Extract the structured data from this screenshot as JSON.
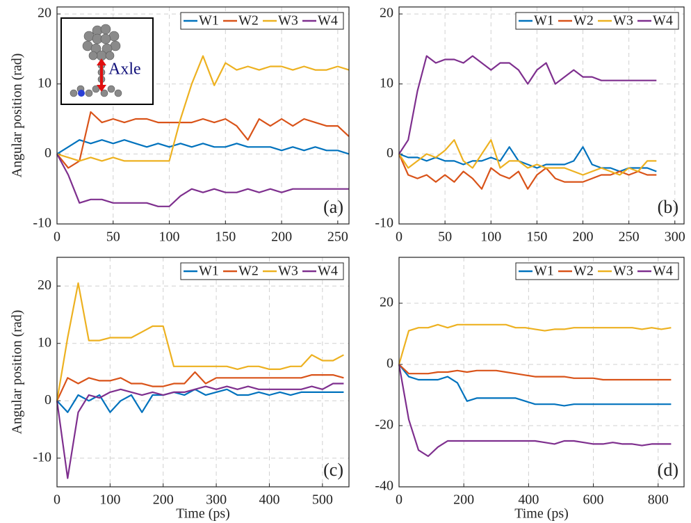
{
  "chart_data": [
    {
      "type": "line",
      "panel_label": "(a)",
      "ylabel": "Angular position (rad)",
      "inset_label": "Axle",
      "x": [
        0,
        10,
        20,
        30,
        40,
        50,
        60,
        70,
        80,
        90,
        100,
        110,
        120,
        130,
        140,
        150,
        160,
        170,
        180,
        190,
        200,
        210,
        220,
        230,
        240,
        250,
        260
      ],
      "xlim": [
        0,
        260
      ],
      "xticks": [
        0,
        50,
        100,
        150,
        200,
        250
      ],
      "ylim": [
        -10,
        21
      ],
      "yticks": [
        -10,
        0,
        10,
        20
      ],
      "grid": true,
      "legend": "upper right",
      "series": [
        {
          "name": "W1",
          "color": "#0072BD",
          "values": [
            0,
            1,
            2,
            1.5,
            2,
            1.5,
            2,
            1.5,
            1,
            1.5,
            1,
            1.5,
            1,
            1.5,
            1,
            1,
            1.5,
            1,
            1,
            1,
            0.5,
            1,
            0.5,
            1,
            0.5,
            0.5,
            0
          ]
        },
        {
          "name": "W2",
          "color": "#D95319",
          "values": [
            0,
            -2,
            -1,
            6,
            4.5,
            5,
            4.5,
            5,
            5,
            4.5,
            4.5,
            4.5,
            4.5,
            5,
            4.5,
            5,
            4,
            2,
            5,
            4,
            5,
            4,
            5,
            4.5,
            4,
            4,
            2.5
          ]
        },
        {
          "name": "W3",
          "color": "#EDB120",
          "values": [
            0,
            -0.5,
            -1,
            -0.5,
            -1,
            -0.5,
            -1,
            -1,
            -1,
            -1,
            -1,
            5,
            10,
            14,
            9.8,
            13,
            12,
            12.5,
            12,
            12.5,
            12.5,
            12,
            12.5,
            12,
            12,
            12.5,
            12
          ]
        },
        {
          "name": "W4",
          "color": "#7E2F8E",
          "values": [
            0,
            -3,
            -7,
            -6.5,
            -6.5,
            -7,
            -7,
            -7,
            -7,
            -7.5,
            -7.5,
            -6,
            -5,
            -5.5,
            -5,
            -5.5,
            -5.5,
            -5,
            -5.5,
            -5,
            -5.5,
            -5,
            -5,
            -5,
            -5,
            -5,
            -5
          ]
        }
      ]
    },
    {
      "type": "line",
      "panel_label": "(b)",
      "x": [
        0,
        10,
        20,
        30,
        40,
        50,
        60,
        70,
        80,
        90,
        100,
        110,
        120,
        130,
        140,
        150,
        160,
        170,
        180,
        190,
        200,
        210,
        220,
        230,
        240,
        250,
        260,
        270,
        280
      ],
      "xlim": [
        0,
        310
      ],
      "xticks": [
        0,
        50,
        100,
        150,
        200,
        250,
        300
      ],
      "ylim": [
        -10,
        21
      ],
      "yticks": [
        -10,
        0,
        10,
        20
      ],
      "grid": true,
      "legend": "upper right",
      "series": [
        {
          "name": "W1",
          "color": "#0072BD",
          "values": [
            0,
            -0.5,
            -0.5,
            -1,
            -0.5,
            -1,
            -1,
            -1.5,
            -1,
            -1,
            -0.5,
            -1,
            1,
            -1,
            -1.5,
            -2,
            -1.5,
            -1.5,
            -1.5,
            -1,
            1,
            -1.5,
            -2,
            -2,
            -2.5,
            -2,
            -2,
            -2,
            -2.5
          ]
        },
        {
          "name": "W2",
          "color": "#D95319",
          "values": [
            0,
            -3,
            -3.5,
            -3,
            -4,
            -3,
            -4,
            -2.5,
            -3.5,
            -5,
            -2,
            -3,
            -3.5,
            -2.5,
            -5,
            -3,
            -2,
            -3.5,
            -4,
            -4,
            -4,
            -3.5,
            -3,
            -3,
            -2.5,
            -3,
            -2.5,
            -3,
            -3
          ]
        },
        {
          "name": "W3",
          "color": "#EDB120",
          "values": [
            0,
            -2,
            -1,
            0,
            -0.5,
            0.5,
            2,
            -1,
            -2,
            0,
            2,
            -2,
            -1,
            -1,
            -2,
            -1.5,
            -2,
            -2,
            -2,
            -2.5,
            -3,
            -2.5,
            -2,
            -2.5,
            -3,
            -2,
            -2.5,
            -1,
            -1
          ]
        },
        {
          "name": "W4",
          "color": "#7E2F8E",
          "values": [
            0,
            2,
            9,
            14,
            13,
            13.5,
            13.5,
            13,
            14,
            13,
            12,
            13,
            13,
            12,
            10,
            12,
            13,
            10,
            11,
            12,
            11,
            11,
            10.5,
            10.5,
            10.5,
            10.5,
            10.5,
            10.5,
            10.5
          ]
        }
      ]
    },
    {
      "type": "line",
      "panel_label": "(c)",
      "ylabel": "Angular position (rad)",
      "xlabel": "Time (ps)",
      "x": [
        0,
        20,
        40,
        60,
        80,
        100,
        120,
        140,
        160,
        180,
        200,
        220,
        240,
        260,
        280,
        300,
        320,
        340,
        360,
        380,
        400,
        420,
        440,
        460,
        480,
        500,
        520,
        540
      ],
      "xlim": [
        0,
        550
      ],
      "xticks": [
        0,
        100,
        200,
        300,
        400,
        500
      ],
      "ylim": [
        -15,
        25
      ],
      "yticks": [
        -10,
        0,
        10,
        20
      ],
      "grid": true,
      "legend": "upper right",
      "series": [
        {
          "name": "W1",
          "color": "#0072BD",
          "values": [
            0,
            -2,
            1,
            0,
            1,
            -2,
            0,
            1,
            -2,
            1,
            1,
            1.5,
            1,
            2,
            1,
            1.5,
            2,
            1,
            1,
            1.5,
            1,
            1.5,
            1,
            1.5,
            1.5,
            1.5,
            1.5,
            1.5
          ]
        },
        {
          "name": "W2",
          "color": "#D95319",
          "values": [
            0,
            4,
            3,
            4,
            3.5,
            3.5,
            4,
            3,
            3,
            2.5,
            2.5,
            3,
            3,
            5,
            3,
            4,
            4,
            4,
            4,
            4,
            4,
            4,
            4,
            4,
            4.5,
            4.5,
            4.5,
            4
          ]
        },
        {
          "name": "W3",
          "color": "#EDB120",
          "values": [
            0,
            11,
            20.5,
            10.5,
            10.5,
            11,
            11,
            11,
            12,
            13,
            13,
            6,
            6,
            6,
            6,
            6,
            6,
            5.5,
            6,
            6,
            5.5,
            5.5,
            6,
            6,
            8,
            7,
            7,
            8
          ]
        },
        {
          "name": "W4",
          "color": "#7E2F8E",
          "values": [
            0,
            -13.5,
            -2,
            1,
            0.5,
            1.5,
            2,
            1.5,
            1,
            1.5,
            1,
            1.5,
            1.5,
            2,
            2.5,
            2,
            2.5,
            2,
            2.5,
            2,
            2,
            2,
            2,
            2,
            2.5,
            2,
            3,
            3
          ]
        }
      ]
    },
    {
      "type": "line",
      "panel_label": "(d)",
      "xlabel": "Time (ps)",
      "x": [
        0,
        30,
        60,
        90,
        120,
        150,
        180,
        210,
        240,
        270,
        300,
        330,
        360,
        390,
        420,
        450,
        480,
        510,
        540,
        570,
        600,
        630,
        660,
        690,
        720,
        750,
        780,
        810,
        840
      ],
      "xlim": [
        0,
        880
      ],
      "xticks": [
        0,
        200,
        400,
        600,
        800
      ],
      "ylim": [
        -40,
        35
      ],
      "yticks": [
        -40,
        -20,
        0,
        20
      ],
      "grid": true,
      "legend": "upper right",
      "series": [
        {
          "name": "W1",
          "color": "#0072BD",
          "values": [
            0,
            -4,
            -5,
            -5,
            -5,
            -4,
            -6,
            -12,
            -11,
            -11,
            -11,
            -11,
            -11,
            -12,
            -13,
            -13,
            -13,
            -13.5,
            -13,
            -13,
            -13,
            -13,
            -13,
            -13,
            -13,
            -13,
            -13,
            -13,
            -13
          ]
        },
        {
          "name": "W2",
          "color": "#D95319",
          "values": [
            0,
            -3,
            -3,
            -3,
            -2.5,
            -2.5,
            -2,
            -2.5,
            -2,
            -2,
            -2,
            -2.5,
            -3,
            -3.5,
            -4,
            -4,
            -4,
            -4,
            -4.5,
            -4.5,
            -4.5,
            -5,
            -5,
            -5,
            -5,
            -5,
            -5,
            -5,
            -5
          ]
        },
        {
          "name": "W3",
          "color": "#EDB120",
          "values": [
            0,
            11,
            12,
            12,
            13,
            12,
            13,
            13,
            13,
            13,
            13,
            13,
            12,
            12,
            11.5,
            11,
            11.5,
            11.5,
            12,
            12,
            12,
            12,
            12,
            12,
            12,
            11.5,
            12,
            11.5,
            12
          ]
        },
        {
          "name": "W4",
          "color": "#7E2F8E",
          "values": [
            0,
            -18,
            -28,
            -30,
            -27,
            -25,
            -25,
            -25,
            -25,
            -25,
            -25,
            -25,
            -25,
            -25,
            -25,
            -25.5,
            -26,
            -25,
            -25,
            -25.5,
            -26,
            -26,
            -25.5,
            -26,
            -26,
            -26.5,
            -26,
            -26,
            -26
          ]
        }
      ]
    }
  ]
}
